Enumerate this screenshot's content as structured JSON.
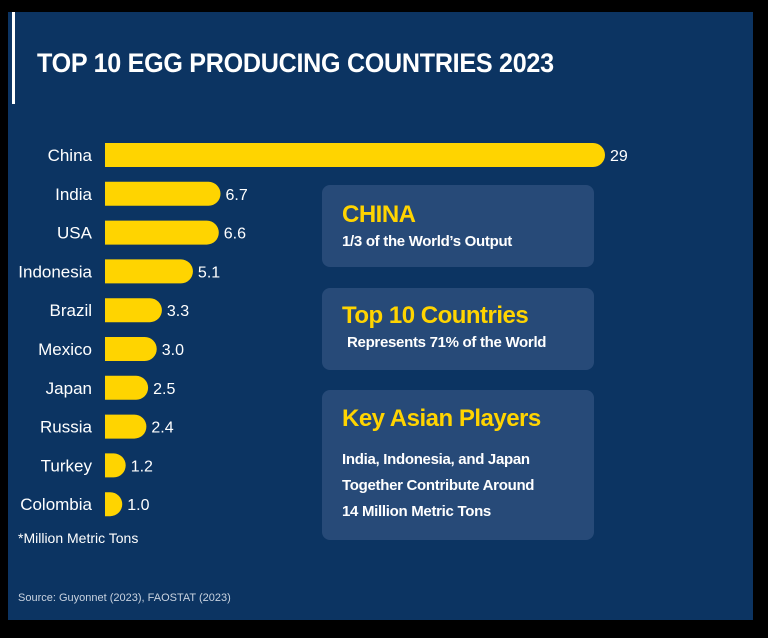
{
  "title": "TOP 10 EGG PRODUCING COUNTRIES 2023",
  "chart_data": {
    "type": "bar",
    "orientation": "horizontal",
    "categories": [
      "China",
      "India",
      "USA",
      "Indonesia",
      "Brazil",
      "Mexico",
      "Japan",
      "Russia",
      "Turkey",
      "Colombia"
    ],
    "values": [
      29,
      6.7,
      6.6,
      5.1,
      3.3,
      3.0,
      2.5,
      2.4,
      1.2,
      1.0
    ],
    "value_labels": [
      "29",
      "6.7",
      "6.6",
      "5.1",
      "3.3",
      "3.0",
      "2.5",
      "2.4",
      "1.2",
      "1.0"
    ],
    "unit_note": "*Million Metric Tons",
    "grid": false,
    "bar_color": "#FFD400"
  },
  "boxes": [
    {
      "heading": "CHINA",
      "lines": [
        "1/3 of the World’s Output"
      ]
    },
    {
      "heading": "Top 10 Countries",
      "lines": [
        "Represents 71% of the World"
      ]
    },
    {
      "heading": "Key Asian Players",
      "lines": [
        "India, Indonesia, and Japan",
        "Together Contribute Around",
        "14 Million Metric Tons"
      ]
    }
  ],
  "source": "Source: Guyonnet (2023), FAOSTAT (2023)",
  "colors": {
    "background": "#0C3462",
    "box": "#274A78",
    "accent": "#FFD400"
  }
}
